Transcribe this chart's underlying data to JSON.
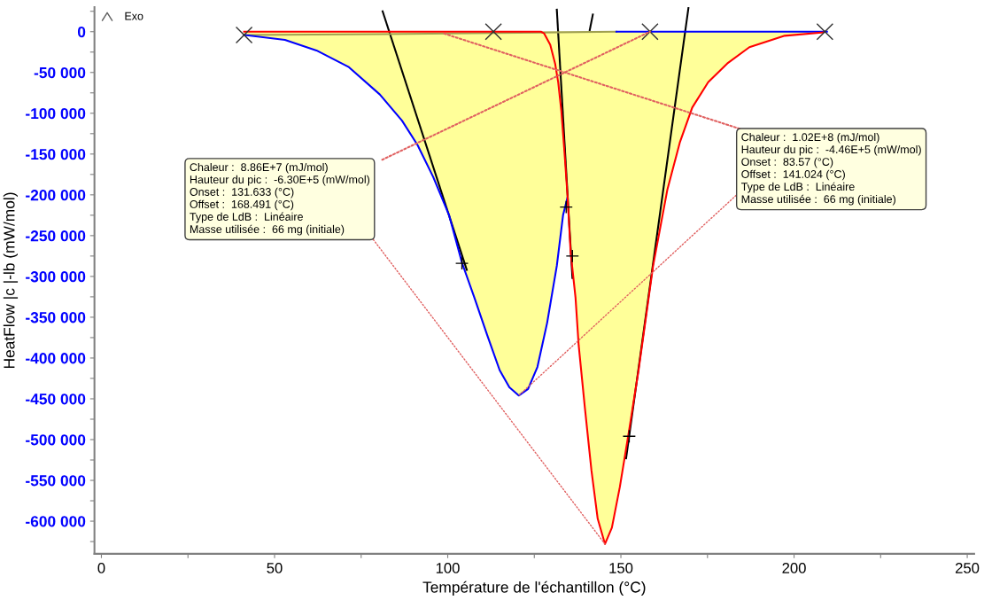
{
  "chart_data": {
    "type": "line",
    "xlabel": "Température de l'échantillon (°C)",
    "ylabel": "HeatFlow |c |-lb (mW/mol)",
    "xlim": [
      -2,
      252
    ],
    "xticks": [
      0,
      {
        "value": 25,
        "label": null
      },
      50,
      {
        "value": 75,
        "label": null
      },
      100,
      {
        "value": 125,
        "label": null
      },
      150,
      {
        "value": 175,
        "label": null
      },
      200,
      {
        "value": 225,
        "label": null
      },
      250
    ],
    "ylim": [
      -640000,
      30000
    ],
    "yticks": [
      {
        "value": -625000,
        "label": null
      },
      {
        "value": -600000,
        "label": "-600 000"
      },
      {
        "value": -575000,
        "label": null
      },
      {
        "value": -550000,
        "label": "-550 000"
      },
      {
        "value": -525000,
        "label": null
      },
      {
        "value": -500000,
        "label": "-500 000"
      },
      {
        "value": -475000,
        "label": null
      },
      {
        "value": -450000,
        "label": "-450 000"
      },
      {
        "value": -425000,
        "label": null
      },
      {
        "value": -400000,
        "label": "-400 000"
      },
      {
        "value": -375000,
        "label": null
      },
      {
        "value": -350000,
        "label": "-350 000"
      },
      {
        "value": -325000,
        "label": null
      },
      {
        "value": -300000,
        "label": "-300 000"
      },
      {
        "value": -275000,
        "label": null
      },
      {
        "value": -250000,
        "label": "-250 000"
      },
      {
        "value": -225000,
        "label": null
      },
      {
        "value": -200000,
        "label": "-200 000"
      },
      {
        "value": -175000,
        "label": null
      },
      {
        "value": -150000,
        "label": "-150 000"
      },
      {
        "value": -125000,
        "label": null
      },
      {
        "value": -100000,
        "label": "-100 000"
      },
      {
        "value": -75000,
        "label": null
      },
      {
        "value": -50000,
        "label": "-50 000"
      },
      {
        "value": -25000,
        "label": null
      },
      0,
      {
        "value": 25000,
        "label": null
      }
    ],
    "grid": false,
    "series": [
      {
        "type": "area",
        "color": "#ffff99",
        "x": [
          41.2,
          53.0,
          62.1,
          71.3,
          80.4,
          86.8,
          91.3,
          95.8,
          100.4,
          104.1,
          107.7,
          111.4,
          115.0,
          117.8,
          120.5,
          123.2,
          125.9,
          128.7,
          131.5,
          133.3,
          134.6
        ],
        "values": [
          -4000,
          -10000,
          -23000,
          -43000,
          -77000,
          -109000,
          -139000,
          -178000,
          -225000,
          -283000,
          -326000,
          -372000,
          -415000,
          -436000,
          -446000,
          -438000,
          -411000,
          -357000,
          -287000,
          -225000,
          -203000
        ]
      },
      {
        "type": "area",
        "color": "#ffff99",
        "x": [
          126.9,
          127.8,
          129.6,
          131.0,
          131.9,
          132.8,
          133.7,
          134.6,
          135.5,
          136.9,
          137.8,
          139.6,
          141.5,
          143.3,
          145.4,
          147.4,
          149.7,
          152.4,
          155.1,
          157.4,
          159.3,
          163.4,
          167.0,
          170.6,
          175.2,
          180.7,
          187.1,
          197.3,
          208.4
        ],
        "values": [
          0,
          -2000,
          -16000,
          -39000,
          -62000,
          -97000,
          -147000,
          -202000,
          -271000,
          -326000,
          -384000,
          -461000,
          -538000,
          -597000,
          -628000,
          -608000,
          -558000,
          -488000,
          -415000,
          -345000,
          -287000,
          -194000,
          -136000,
          -93000,
          -62000,
          -39000,
          -19000,
          -5000,
          -1000
        ]
      },
      {
        "color": "#000000",
        "x": [
          81.2,
          105.5
        ],
        "values": [
          25000,
          -292000
        ]
      },
      {
        "color": "#000000",
        "x": [
          131.5,
          136.0
        ],
        "values": [
          27000,
          -302000
        ]
      },
      {
        "color": "#000000",
        "x": [
          169.5,
          151.5
        ],
        "values": [
          29000,
          -523000
        ]
      },
      {
        "color": "#000000",
        "x": [
          141.9,
          141.0
        ],
        "values": [
          21000,
          2000
        ]
      },
      {
        "color": "#a0a050",
        "x": [
          41.2,
          82.0,
          127.0,
          148.7
        ],
        "values": [
          -4000,
          -3000,
          -1000,
          0
        ]
      },
      {
        "color": "#0000ff",
        "x": [
          148.7,
          209.5
        ],
        "values": [
          0,
          0
        ]
      },
      {
        "color": "#0000ff",
        "x": [
          41.2,
          53.0,
          62.1,
          71.3,
          80.4,
          86.8,
          91.3,
          95.8,
          100.4,
          104.1,
          107.7,
          111.4,
          115.0,
          117.8,
          120.5,
          123.2,
          125.9,
          128.7,
          131.5,
          133.3,
          134.6
        ],
        "values": [
          -4000,
          -10000,
          -23000,
          -43000,
          -77000,
          -109000,
          -139000,
          -178000,
          -225000,
          -283000,
          -326000,
          -372000,
          -415000,
          -436000,
          -446000,
          -438000,
          -411000,
          -357000,
          -287000,
          -225000,
          -203000
        ]
      },
      {
        "color": "#ff0000",
        "x": [
          41.2,
          126.9,
          127.8,
          129.6,
          131.0,
          131.9,
          132.8,
          133.7,
          134.6,
          135.5,
          136.9,
          137.8,
          139.6,
          141.5,
          143.3,
          145.4,
          147.4,
          149.7,
          152.4,
          155.1,
          157.4,
          159.3,
          163.4,
          167.0,
          170.6,
          175.2,
          180.7,
          187.1,
          197.3,
          208.4
        ],
        "values": [
          0,
          0,
          -2000,
          -16000,
          -39000,
          -62000,
          -97000,
          -147000,
          -202000,
          -271000,
          -326000,
          -384000,
          -461000,
          -538000,
          -597000,
          -628000,
          -608000,
          -558000,
          -488000,
          -415000,
          -345000,
          -287000,
          -194000,
          -136000,
          -93000,
          -62000,
          -39000,
          -19000,
          -5000,
          -1000
        ]
      },
      {
        "type": "scatter",
        "color": "#303030",
        "marker": "x",
        "x": [
          41.2,
          113.2,
          158.4,
          208.9
        ],
        "values": [
          -4000,
          0,
          0,
          0
        ]
      },
      {
        "type": "scatter",
        "color": "#000000",
        "marker": "cross",
        "x": [
          104.1,
          134.2,
          136.0,
          152.4
        ],
        "values": [
          -284000,
          -215000,
          -275000,
          -496000
        ]
      },
      {
        "color": "#e06060",
        "line_style": "dotted",
        "x": [
          81.1,
          158.4
        ],
        "values": [
          -157000,
          0
        ]
      },
      {
        "color": "#e06060",
        "line_style": "dotted",
        "x": [
          184.3,
          98.7
        ],
        "values": [
          -119000,
          -2000
        ]
      }
    ],
    "annotations": [
      "Exo",
      {
        "text": "Chaleur :  8.86E+7 (mJ/mol)\nHauteur du pic :  -6.30E+5 (mW/mol)\nOnset :  131.633 (°C)\nOffset :  168.491 (°C)\nType de LdB :  Linéaire\nMasse utilisée :  66 mg (initiale)",
        "x": 145.4,
        "y": -628000
      },
      {
        "text": "Chaleur :  1.02E+8 (mJ/mol)\nHauteur du pic :  -4.46E+5 (mW/mol)\nOnset :  83.57 (°C)\nOffset :  141.024 (°C)\nType de LdB :  Linéaire\nMasse utilisée :  66 mg (initiale)",
        "x": 120.5,
        "y": -446000
      }
    ]
  }
}
